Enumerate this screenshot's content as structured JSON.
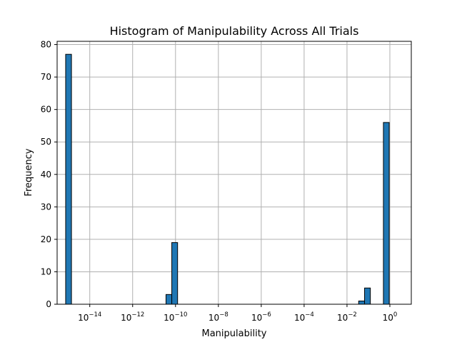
{
  "chart_data": {
    "type": "bar",
    "title": "Histogram of Manipulability Across All Trials",
    "xlabel": "Manipulability",
    "ylabel": "Frequency",
    "x_scale": "log",
    "xlim": [
      3e-16,
      10.0
    ],
    "ylim": [
      0,
      81
    ],
    "grid": true,
    "bar_color": "#1f77b4",
    "edge_color": "#000000",
    "x_tick_labels": [
      {
        "value": 1e-14,
        "base": "10",
        "exp": "−14"
      },
      {
        "value": 1e-12,
        "base": "10",
        "exp": "−12"
      },
      {
        "value": 1e-10,
        "base": "10",
        "exp": "−10"
      },
      {
        "value": 1e-08,
        "base": "10",
        "exp": "−8"
      },
      {
        "value": 1e-06,
        "base": "10",
        "exp": "−6"
      },
      {
        "value": 0.0001,
        "base": "10",
        "exp": "−4"
      },
      {
        "value": 0.01,
        "base": "10",
        "exp": "−2"
      },
      {
        "value": 1,
        "base": "10",
        "exp": "0"
      }
    ],
    "y_ticks": [
      0,
      10,
      20,
      30,
      40,
      50,
      60,
      70,
      80
    ],
    "bins": [
      {
        "x0": 7.5e-16,
        "x1": 1.4e-15,
        "count": 77
      },
      {
        "x0": 3.6e-11,
        "x1": 6.7e-11,
        "count": 3
      },
      {
        "x0": 6.7e-11,
        "x1": 1.25e-10,
        "count": 19
      },
      {
        "x0": 0.035,
        "x1": 0.066,
        "count": 1
      },
      {
        "x0": 0.066,
        "x1": 0.123,
        "count": 5
      },
      {
        "x0": 0.5,
        "x1": 0.93,
        "count": 56
      }
    ]
  }
}
